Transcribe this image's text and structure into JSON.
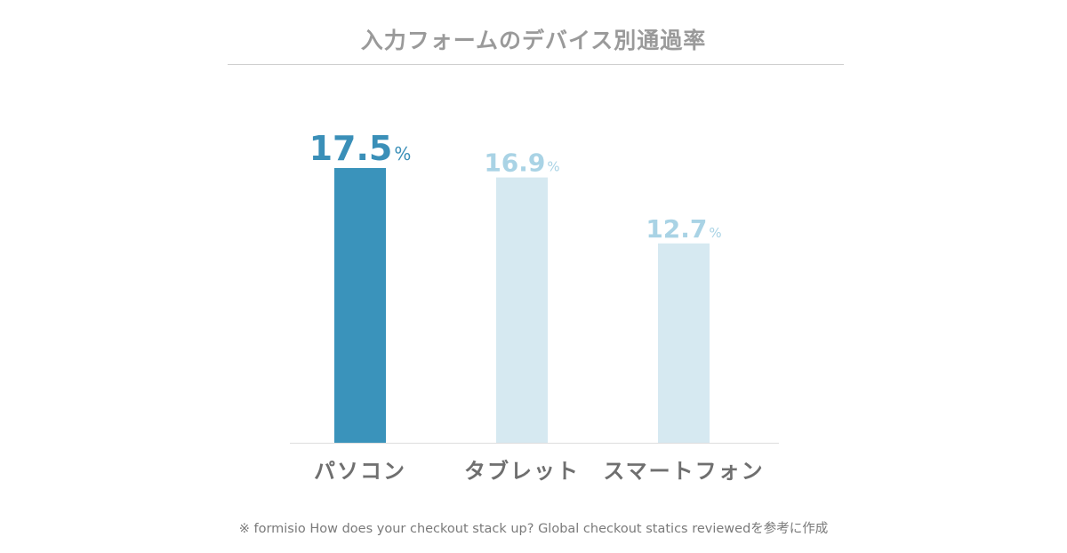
{
  "chart_data": {
    "type": "bar",
    "title": "入力フォームのデバイス別通過率",
    "categories": [
      "パソコン",
      "タブレット",
      "スマートフォン"
    ],
    "values": [
      17.5,
      16.9,
      12.7
    ],
    "value_labels": [
      "17.5",
      "16.9",
      "12.7"
    ],
    "unit": "%",
    "ylim": [
      0,
      17.5
    ],
    "grid": false,
    "legend": "none",
    "highlight_index": 0,
    "colors": {
      "highlight_bar": "#3a93bb",
      "normal_bar": "#d6e9f1",
      "highlight_label": "#3a8fb8",
      "normal_label": "#a9d3e5",
      "category_label": "#6f6f6f",
      "baseline": "#dddddd"
    }
  },
  "source": "※ formisio  How does your checkout stack up? Global checkout statics reviewedを参考に作成"
}
